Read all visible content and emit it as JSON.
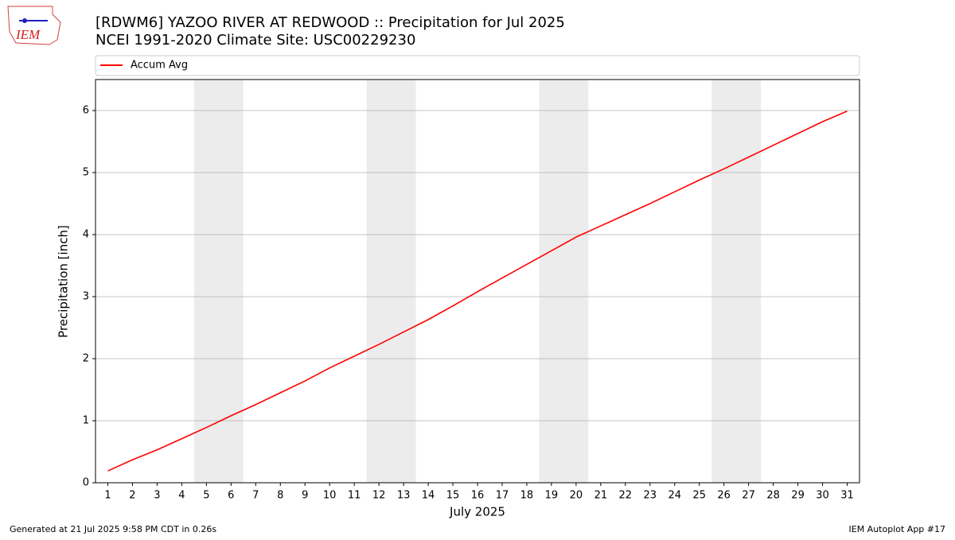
{
  "chart_data": {
    "type": "line",
    "title": "[RDWM6] YAZOO RIVER AT REDWOOD :: Precipitation for Jul 2025",
    "subtitle": "NCEI 1991-2020 Climate Site: USC00229230",
    "x_label": "July 2025",
    "y_label": "Precipitation [inch]",
    "x": [
      1,
      2,
      3,
      4,
      5,
      6,
      7,
      8,
      9,
      10,
      11,
      12,
      13,
      14,
      15,
      16,
      17,
      18,
      19,
      20,
      21,
      22,
      23,
      24,
      25,
      26,
      27,
      28,
      29,
      30,
      31
    ],
    "series": [
      {
        "name": "Accum Avg",
        "color": "#ff0000",
        "values": [
          0.19,
          0.37,
          0.53,
          0.71,
          0.89,
          1.08,
          1.26,
          1.45,
          1.64,
          1.85,
          2.04,
          2.23,
          2.43,
          2.63,
          2.85,
          3.08,
          3.3,
          3.52,
          3.74,
          3.96,
          4.14,
          4.32,
          4.5,
          4.69,
          4.88,
          5.06,
          5.25,
          5.44,
          5.63,
          5.82,
          5.99
        ]
      }
    ],
    "shaded_x": [
      [
        4.5,
        6.5
      ],
      [
        11.5,
        13.5
      ],
      [
        18.5,
        20.5
      ],
      [
        25.5,
        27.5
      ]
    ],
    "shade_color": "#ececec",
    "xlim": [
      0.5,
      31.5
    ],
    "ylim": [
      0,
      6.5
    ],
    "xticks": [
      1,
      2,
      3,
      4,
      5,
      6,
      7,
      8,
      9,
      10,
      11,
      12,
      13,
      14,
      15,
      16,
      17,
      18,
      19,
      20,
      21,
      22,
      23,
      24,
      25,
      26,
      27,
      28,
      29,
      30,
      31
    ],
    "yticks": [
      0,
      1,
      2,
      3,
      4,
      5,
      6
    ],
    "grid": "y",
    "legend": "top"
  },
  "page": {
    "logo": "IEM",
    "footer_left": "Generated at 21 Jul 2025 9:58 PM CDT in 0.26s",
    "footer_right": "IEM Autoplot App #17"
  }
}
